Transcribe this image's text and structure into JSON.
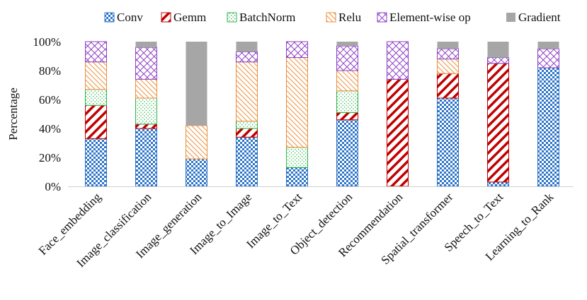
{
  "chart_data": {
    "type": "bar",
    "stacked": true,
    "title": "",
    "xlabel": "",
    "ylabel": "Percentage",
    "ylim": [
      0,
      100
    ],
    "y_ticks": [
      "0%",
      "20%",
      "40%",
      "60%",
      "80%",
      "100%"
    ],
    "grid": false,
    "legend_position": "top",
    "categories": [
      "Face_embedding",
      "Image_classification",
      "Image_generation",
      "Image_to_Image",
      "Image_to_Text",
      "Object_detection",
      "Recommendation",
      "Spatial_transformer",
      "Speech_to_Text",
      "Learning_to_Rank"
    ],
    "series": [
      {
        "name": "Conv",
        "color": "#2e75c8",
        "pattern": "checker",
        "values": [
          33,
          40,
          19,
          34,
          13,
          46,
          0,
          61,
          3,
          82
        ]
      },
      {
        "name": "Gemm",
        "color": "#c00000",
        "pattern": "wide-diag",
        "values": [
          23,
          3,
          0,
          6,
          0,
          5,
          74,
          17,
          82,
          0
        ]
      },
      {
        "name": "BatchNorm",
        "color": "#2db34a",
        "pattern": "dots",
        "values": [
          11,
          18,
          0,
          5,
          14,
          15,
          0,
          0,
          0,
          0
        ]
      },
      {
        "name": "Relu",
        "color": "#ed8f3a",
        "pattern": "thin-diag",
        "values": [
          19,
          13,
          23,
          41,
          62,
          14,
          0,
          10,
          0,
          0
        ]
      },
      {
        "name": "Element-wise op",
        "color": "#8e3fc6",
        "pattern": "crosshatch",
        "values": [
          14,
          22,
          0,
          7,
          11,
          17,
          26,
          7,
          4,
          13
        ]
      },
      {
        "name": "Gradient",
        "color": "#a6a6a6",
        "pattern": "solid",
        "values": [
          0,
          4,
          58,
          7,
          0,
          3,
          0,
          5,
          11,
          5
        ]
      }
    ]
  }
}
